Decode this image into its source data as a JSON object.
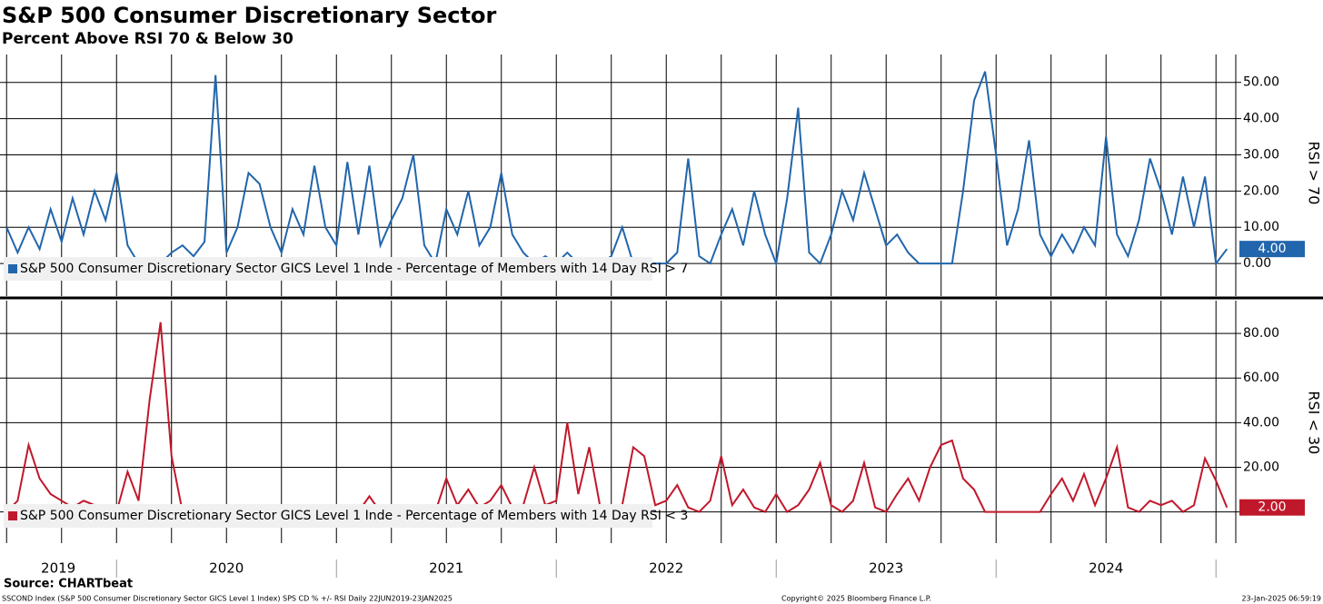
{
  "chart_data": {
    "type": "line",
    "title": "S&P 500 Consumer Discretionary Sector",
    "subtitle": "Percent Above RSI 70 & Below 30",
    "source": "Source: CHARTbeat",
    "footer_left": "SSCOND Index (S&P 500 Consumer Discretionary Sector GICS Level 1 Index) SPS CD % +/- RSI  Daily 22JUN2019-23JAN2025",
    "footer_center": "Copyright© 2025 Bloomberg Finance L.P.",
    "footer_right": "23-Jan-2025 06:59:19",
    "x": [
      2019.5,
      2019.55,
      2019.6,
      2019.65,
      2019.7,
      2019.75,
      2019.8,
      2019.85,
      2019.9,
      2019.95,
      2020,
      2020.05,
      2020.1,
      2020.15,
      2020.2,
      2020.25,
      2020.3,
      2020.35,
      2020.4,
      2020.45,
      2020.5,
      2020.55,
      2020.6,
      2020.65,
      2020.7,
      2020.75,
      2020.8,
      2020.85,
      2020.9,
      2020.95,
      2021,
      2021.05,
      2021.1,
      2021.15,
      2021.2,
      2021.25,
      2021.3,
      2021.35,
      2021.4,
      2021.45,
      2021.5,
      2021.55,
      2021.6,
      2021.65,
      2021.7,
      2021.75,
      2021.8,
      2021.85,
      2021.9,
      2021.95,
      2022,
      2022.05,
      2022.1,
      2022.15,
      2022.2,
      2022.25,
      2022.3,
      2022.35,
      2022.4,
      2022.45,
      2022.5,
      2022.55,
      2022.6,
      2022.65,
      2022.7,
      2022.75,
      2022.8,
      2022.85,
      2022.9,
      2022.95,
      2023,
      2023.05,
      2023.1,
      2023.15,
      2023.2,
      2023.25,
      2023.3,
      2023.35,
      2023.4,
      2023.45,
      2023.5,
      2023.55,
      2023.6,
      2023.65,
      2023.7,
      2023.75,
      2023.8,
      2023.85,
      2023.9,
      2023.95,
      2024,
      2024.05,
      2024.1,
      2024.15,
      2024.2,
      2024.25,
      2024.3,
      2024.35,
      2024.4,
      2024.45,
      2024.5,
      2024.55,
      2024.6,
      2024.65,
      2024.7,
      2024.75,
      2024.8,
      2024.85,
      2024.9,
      2024.95,
      2025,
      2025.05
    ],
    "xlim": [
      2019.47,
      2025.09
    ],
    "xticks": [
      {
        "value": 2019.735,
        "label": "2019"
      },
      {
        "value": 2020.5,
        "label": "2020"
      },
      {
        "value": 2021.5,
        "label": "2021"
      },
      {
        "value": 2022.5,
        "label": "2022"
      },
      {
        "value": 2023.5,
        "label": "2023"
      },
      {
        "value": 2024.5,
        "label": "2024"
      }
    ],
    "year_boundaries": [
      2020,
      2021,
      2022,
      2023,
      2024,
      2025
    ],
    "xgrid": [
      2019.5,
      2019.75,
      2020,
      2020.25,
      2020.5,
      2020.75,
      2021,
      2021.25,
      2021.5,
      2021.75,
      2022,
      2022.25,
      2022.5,
      2022.75,
      2023,
      2023.25,
      2023.5,
      2023.75,
      2024,
      2024.25,
      2024.5,
      2024.75,
      2025
    ],
    "panels": [
      {
        "axis_label": "RSI > 70",
        "ylim": [
          -9,
          57.7
        ],
        "yticks": [
          {
            "value": 0,
            "label": "0.00"
          },
          {
            "value": 10,
            "label": "10.00"
          },
          {
            "value": 20,
            "label": "20.00"
          },
          {
            "value": 30,
            "label": "30.00"
          },
          {
            "value": 40,
            "label": "40.00"
          },
          {
            "value": 50,
            "label": "50.00"
          }
        ],
        "last_value_label": "4.00",
        "series": [
          {
            "name": "S&P 500 Consumer Discretionary Sector GICS Level 1 Inde - Percentage of Members with 14 Day RSI > 7",
            "color": "#2166ac",
            "values": [
              10,
              3,
              10,
              4,
              15,
              6,
              18,
              8,
              20,
              12,
              25,
              5,
              0,
              0,
              0,
              3,
              5,
              2,
              6,
              52,
              3,
              10,
              25,
              22,
              10,
              3,
              15,
              8,
              27,
              10,
              5,
              28,
              8,
              27,
              5,
              12,
              18,
              30,
              5,
              0,
              15,
              8,
              20,
              5,
              10,
              25,
              8,
              3,
              0,
              2,
              0,
              3,
              0,
              0,
              0,
              2,
              10,
              0,
              0,
              0,
              0,
              3,
              29,
              2,
              0,
              8,
              15,
              5,
              20,
              8,
              0,
              18,
              43,
              3,
              0,
              8,
              20,
              12,
              25,
              15,
              5,
              8,
              3,
              0,
              0,
              0,
              0,
              20,
              45,
              53,
              30,
              5,
              15,
              34,
              8,
              2,
              8,
              3,
              10,
              5,
              35,
              8,
              2,
              12,
              29,
              20,
              8,
              24,
              10,
              24,
              0,
              4
            ]
          }
        ]
      },
      {
        "axis_label": "RSI < 30",
        "ylim": [
          -14,
          94.7
        ],
        "yticks": [
          {
            "value": 0,
            "label": "0.00"
          },
          {
            "value": 20,
            "label": "20.00"
          },
          {
            "value": 40,
            "label": "40.00"
          },
          {
            "value": 60,
            "label": "60.00"
          },
          {
            "value": 80,
            "label": "80.00"
          }
        ],
        "last_value_label": "2.00",
        "series": [
          {
            "name": "S&P 500 Consumer Discretionary Sector GICS Level 1 Inde - Percentage of Members with 14 Day RSI < 3",
            "color": "#c0182b",
            "values": [
              0,
              5,
              30,
              15,
              8,
              5,
              2,
              5,
              3,
              0,
              0,
              18,
              5,
              50,
              85,
              25,
              0,
              0,
              0,
              0,
              0,
              0,
              0,
              0,
              2,
              0,
              0,
              0,
              2,
              0,
              0,
              0,
              0,
              7,
              0,
              0,
              0,
              2,
              0,
              0,
              15,
              3,
              10,
              2,
              5,
              12,
              2,
              3,
              20,
              3,
              5,
              40,
              8,
              29,
              2,
              0,
              3,
              29,
              25,
              3,
              5,
              12,
              2,
              0,
              5,
              25,
              3,
              10,
              2,
              0,
              8,
              0,
              3,
              10,
              22,
              3,
              0,
              5,
              22,
              2,
              0,
              8,
              15,
              5,
              20,
              30,
              32,
              15,
              10,
              0,
              0,
              0,
              0,
              0,
              0,
              8,
              15,
              5,
              17,
              3,
              15,
              29,
              2,
              0,
              5,
              3,
              5,
              0,
              3,
              24,
              14,
              2
            ]
          }
        ]
      }
    ]
  }
}
